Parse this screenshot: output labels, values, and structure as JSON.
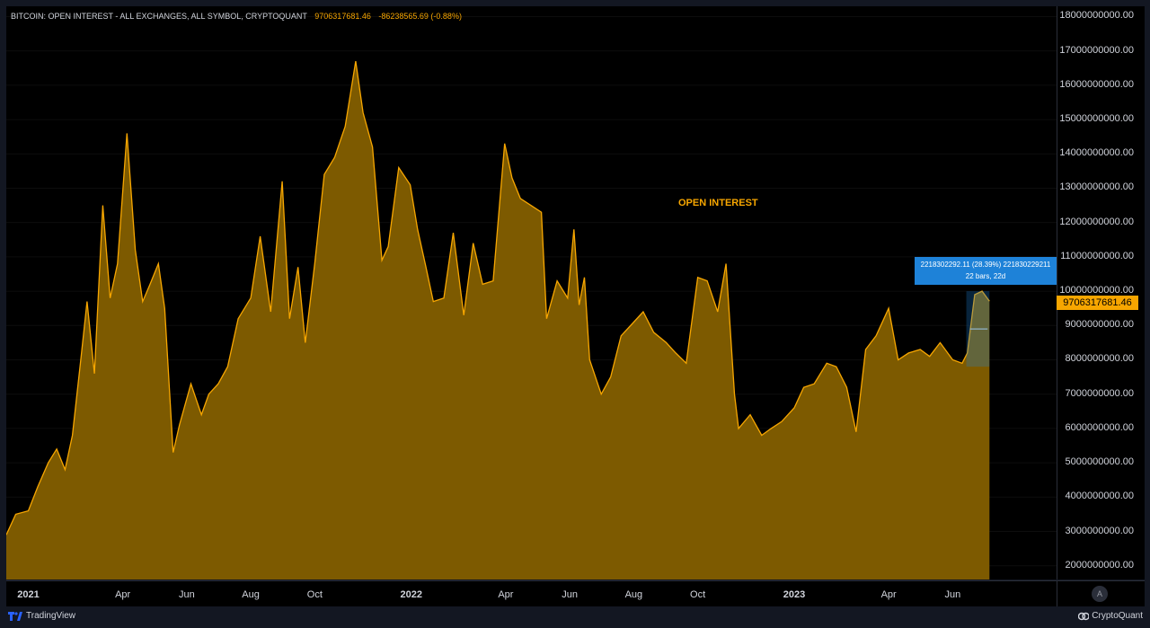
{
  "header": {
    "series_name": "BITCOIN: OPEN INTEREST - ALL EXCHANGES, ALL SYMBOL, CRYPTOQUANT",
    "last_value": "9706317681.46",
    "change": "-86238565.69 (-0.88%)"
  },
  "annotation": {
    "text": "OPEN INTEREST"
  },
  "measure": {
    "line1": "2218302292.11 (28.39%) 221830229211",
    "line2": "22 bars, 22d"
  },
  "price_tag": "9706317681.46",
  "footer": {
    "left_brand": "TradingView",
    "right_brand": "CryptoQuant"
  },
  "auto_button": "A",
  "colors": {
    "line": "#f7a600",
    "fill": "#7d5a00",
    "background": "#000000",
    "measure": "#1e82d8"
  },
  "chart_data": {
    "type": "area",
    "x_label_ticks": [
      {
        "label": "2021",
        "date": "2021-01-01",
        "bold": true
      },
      {
        "label": "Apr",
        "date": "2021-04-01",
        "bold": false
      },
      {
        "label": "Jun",
        "date": "2021-06-01",
        "bold": false
      },
      {
        "label": "Aug",
        "date": "2021-08-01",
        "bold": false
      },
      {
        "label": "Oct",
        "date": "2021-10-01",
        "bold": false
      },
      {
        "label": "2022",
        "date": "2022-01-01",
        "bold": true
      },
      {
        "label": "Apr",
        "date": "2022-04-01",
        "bold": false
      },
      {
        "label": "Jun",
        "date": "2022-06-01",
        "bold": false
      },
      {
        "label": "Aug",
        "date": "2022-08-01",
        "bold": false
      },
      {
        "label": "Oct",
        "date": "2022-10-01",
        "bold": false
      },
      {
        "label": "2023",
        "date": "2023-01-01",
        "bold": true
      },
      {
        "label": "Apr",
        "date": "2023-04-01",
        "bold": false
      },
      {
        "label": "Jun",
        "date": "2023-06-01",
        "bold": false
      }
    ],
    "y_ticks": [
      "2000000000.00",
      "3000000000.00",
      "4000000000.00",
      "5000000000.00",
      "6000000000.00",
      "7000000000.00",
      "8000000000.00",
      "9000000000.00",
      "10000000000.00",
      "11000000000.00",
      "12000000000.00",
      "13000000000.00",
      "14000000000.00",
      "15000000000.00",
      "16000000000.00",
      "17000000000.00",
      "18000000000.00"
    ],
    "ylim": [
      1600000000,
      18300000000
    ],
    "xlim": [
      "2020-12-11",
      "2023-09-08"
    ],
    "series": [
      {
        "x": [
          "2020-12-11",
          "2020-12-20",
          "2021-01-01",
          "2021-01-10",
          "2021-01-20",
          "2021-01-28",
          "2021-02-05",
          "2021-02-12",
          "2021-02-20",
          "2021-02-26",
          "2021-03-05",
          "2021-03-13",
          "2021-03-20",
          "2021-03-27",
          "2021-04-05",
          "2021-04-13",
          "2021-04-20",
          "2021-04-27",
          "2021-05-05",
          "2021-05-11",
          "2021-05-19",
          "2021-05-25",
          "2021-06-05",
          "2021-06-15",
          "2021-06-22",
          "2021-07-01",
          "2021-07-10",
          "2021-07-20",
          "2021-08-01",
          "2021-08-10",
          "2021-08-20",
          "2021-08-31",
          "2021-09-07",
          "2021-09-15",
          "2021-09-22",
          "2021-10-01",
          "2021-10-10",
          "2021-10-20",
          "2021-10-30",
          "2021-11-09",
          "2021-11-16",
          "2021-11-25",
          "2021-12-04",
          "2021-12-10",
          "2021-12-20",
          "2021-12-31",
          "2022-01-07",
          "2022-01-15",
          "2022-01-22",
          "2022-02-01",
          "2022-02-10",
          "2022-02-20",
          "2022-03-01",
          "2022-03-10",
          "2022-03-20",
          "2022-03-31",
          "2022-04-07",
          "2022-04-15",
          "2022-04-25",
          "2022-05-05",
          "2022-05-10",
          "2022-05-20",
          "2022-05-30",
          "2022-06-05",
          "2022-06-10",
          "2022-06-15",
          "2022-06-20",
          "2022-07-01",
          "2022-07-10",
          "2022-07-20",
          "2022-08-01",
          "2022-08-10",
          "2022-08-20",
          "2022-09-01",
          "2022-09-10",
          "2022-09-20",
          "2022-10-01",
          "2022-10-10",
          "2022-10-20",
          "2022-10-28",
          "2022-11-05",
          "2022-11-09",
          "2022-11-20",
          "2022-12-01",
          "2022-12-10",
          "2022-12-20",
          "2023-01-01",
          "2023-01-10",
          "2023-01-20",
          "2023-02-01",
          "2023-02-10",
          "2023-02-20",
          "2023-03-01",
          "2023-03-10",
          "2023-03-20",
          "2023-04-01",
          "2023-04-10",
          "2023-04-20",
          "2023-05-01",
          "2023-05-10",
          "2023-05-20",
          "2023-06-01",
          "2023-06-10",
          "2023-06-15",
          "2023-06-22",
          "2023-06-29",
          "2023-07-06"
        ],
        "y": [
          2900000000,
          3500000000,
          3600000000,
          4300000000,
          5000000000,
          5400000000,
          4800000000,
          5800000000,
          8000000000,
          9700000000,
          7600000000,
          12500000000,
          9800000000,
          10800000000,
          14600000000,
          11200000000,
          9700000000,
          10200000000,
          10800000000,
          9500000000,
          5300000000,
          6100000000,
          7300000000,
          6400000000,
          7000000000,
          7300000000,
          7800000000,
          9200000000,
          9800000000,
          11600000000,
          9400000000,
          13200000000,
          9200000000,
          10700000000,
          8500000000,
          10800000000,
          13400000000,
          13900000000,
          14800000000,
          16700000000,
          15200000000,
          14200000000,
          10900000000,
          11300000000,
          13600000000,
          13100000000,
          11800000000,
          10700000000,
          9700000000,
          9800000000,
          11700000000,
          9300000000,
          11400000000,
          10200000000,
          10300000000,
          14300000000,
          13300000000,
          12700000000,
          12500000000,
          12300000000,
          9200000000,
          10300000000,
          9800000000,
          11800000000,
          9600000000,
          10400000000,
          8000000000,
          7000000000,
          7500000000,
          8700000000,
          9100000000,
          9400000000,
          8800000000,
          8500000000,
          8200000000,
          7900000000,
          10400000000,
          10300000000,
          9400000000,
          10800000000,
          7000000000,
          6000000000,
          6400000000,
          5800000000,
          6000000000,
          6200000000,
          6600000000,
          7200000000,
          7300000000,
          7900000000,
          7800000000,
          7200000000,
          5900000000,
          8300000000,
          8700000000,
          9500000000,
          8000000000,
          8200000000,
          8300000000,
          8100000000,
          8500000000,
          8000000000,
          7900000000,
          8200000000,
          9900000000,
          10000000000,
          9706317681.46
        ]
      }
    ],
    "last_value": 9706317681.46,
    "measure_range": {
      "start": "2023-06-14",
      "end": "2023-07-06"
    }
  }
}
